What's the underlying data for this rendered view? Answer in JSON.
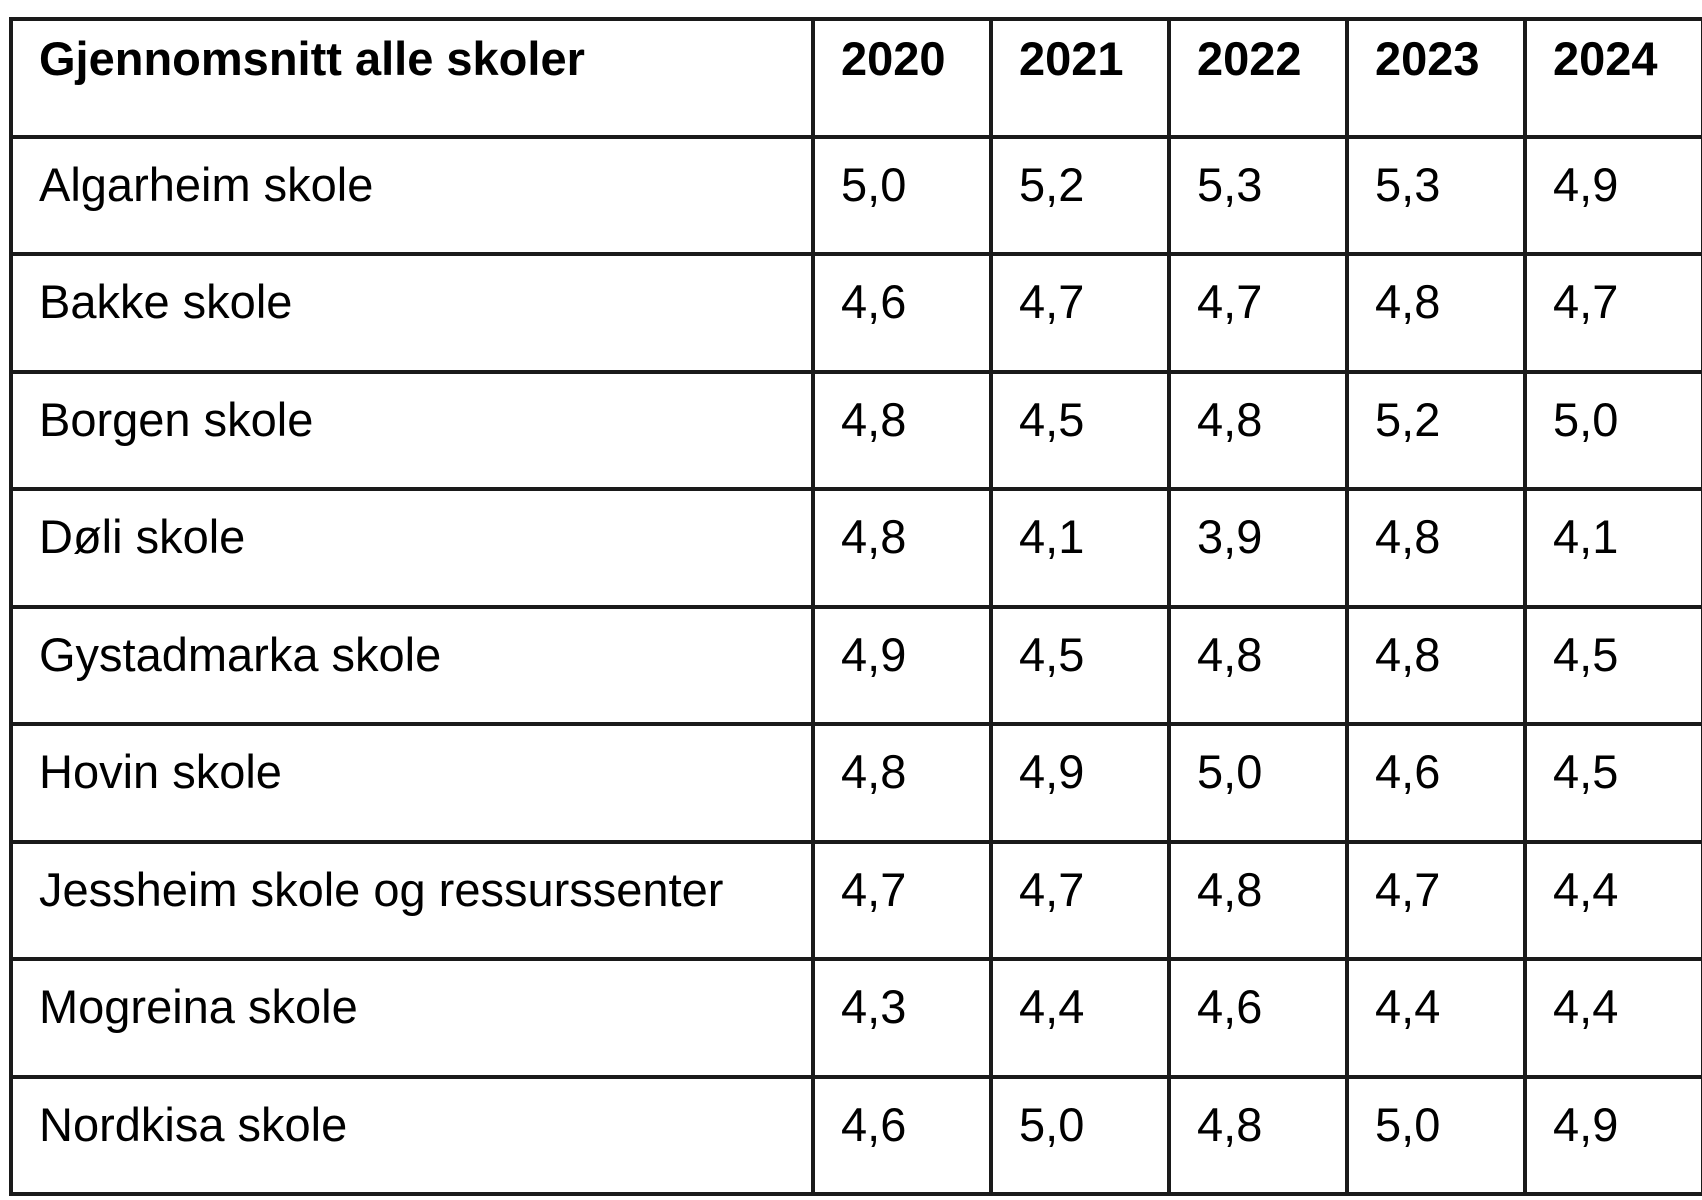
{
  "table": {
    "header": {
      "label": "Gjennomsnitt alle skoler",
      "years": [
        "2020",
        "2021",
        "2022",
        "2023",
        "2024"
      ]
    },
    "rows": [
      {
        "school": "Algarheim skole",
        "values": [
          "5,0",
          "5,2",
          "5,3",
          "5,3",
          "4,9"
        ]
      },
      {
        "school": "Bakke skole",
        "values": [
          "4,6",
          "4,7",
          "4,7",
          "4,8",
          "4,7"
        ]
      },
      {
        "school": "Borgen skole",
        "values": [
          "4,8",
          "4,5",
          "4,8",
          "5,2",
          "5,0"
        ]
      },
      {
        "school": "Døli skole",
        "values": [
          "4,8",
          "4,1",
          "3,9",
          "4,8",
          "4,1"
        ]
      },
      {
        "school": "Gystadmarka skole",
        "values": [
          "4,9",
          "4,5",
          "4,8",
          "4,8",
          "4,5"
        ]
      },
      {
        "school": "Hovin skole",
        "values": [
          "4,8",
          "4,9",
          "5,0",
          "4,6",
          "4,5"
        ]
      },
      {
        "school": "Jessheim skole og ressurssenter",
        "values": [
          "4,7",
          "4,7",
          "4,8",
          "4,7",
          "4,4"
        ]
      },
      {
        "school": "Mogreina skole",
        "values": [
          "4,3",
          "4,4",
          "4,6",
          "4,4",
          "4,4"
        ]
      },
      {
        "school": "Nordkisa skole",
        "values": [
          "4,6",
          "5,0",
          "4,8",
          "5,0",
          "4,9"
        ]
      }
    ]
  }
}
